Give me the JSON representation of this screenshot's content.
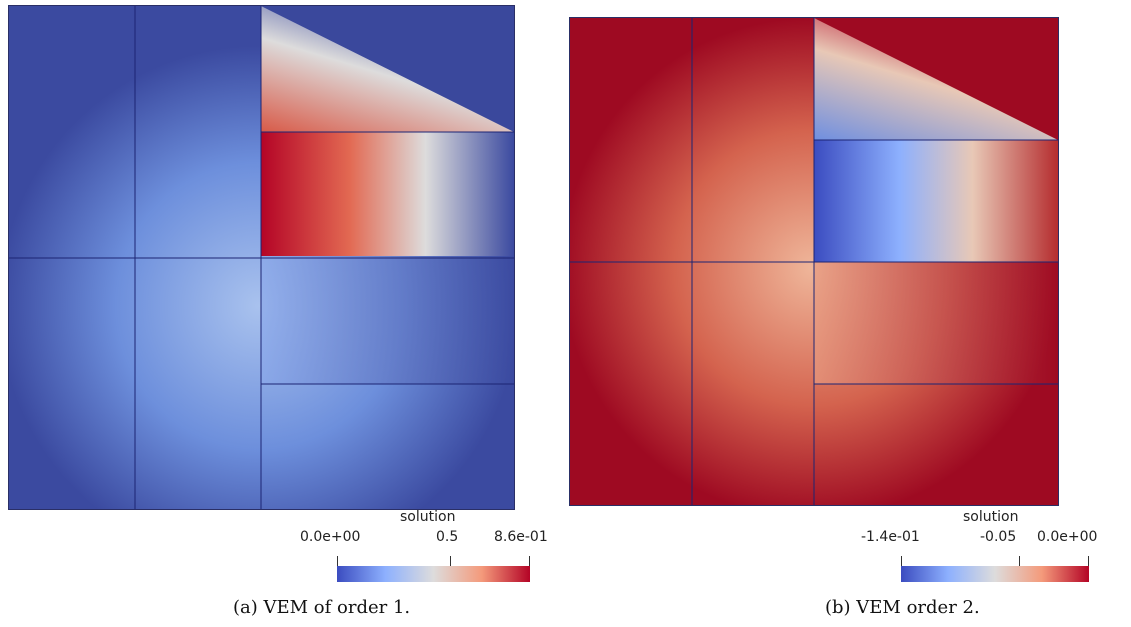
{
  "figures": [
    {
      "id": "a",
      "colorbar": {
        "title": "solution",
        "ticks": [
          {
            "label": "0.0e+00",
            "value": 0.0
          },
          {
            "label": "0.5",
            "value": 0.5
          },
          {
            "label": "8.6e-01",
            "value": 0.86
          }
        ],
        "range": [
          0.0,
          0.86
        ]
      },
      "caption": "(a) VEM of order 1."
    },
    {
      "id": "b",
      "colorbar": {
        "title": "solution",
        "ticks": [
          {
            "label": "-1.4e-01",
            "value": -0.14
          },
          {
            "label": "-0.05",
            "value": -0.05
          },
          {
            "label": "0.0e+00",
            "value": 0.0
          }
        ],
        "range": [
          -0.14,
          0.0
        ]
      },
      "caption": "(b) VEM order 2."
    }
  ],
  "colormap": {
    "low": "#3b4cc0",
    "mid": "#dddcdc",
    "high": "#b40426"
  },
  "mesh_color": "#1c2473"
}
